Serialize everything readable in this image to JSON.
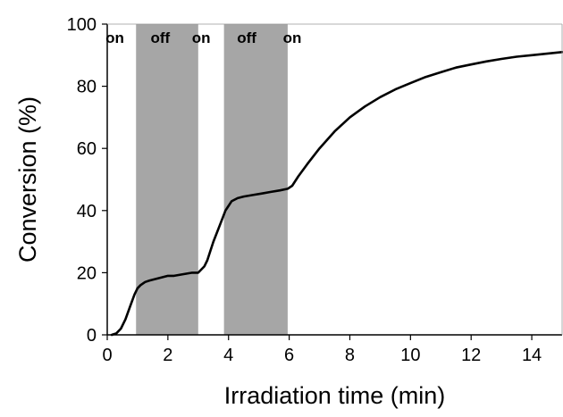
{
  "chart_data": {
    "type": "line",
    "title": "",
    "xlabel": "Irradiation time (min)",
    "ylabel": "Conversion (%)",
    "xlim": [
      0,
      15
    ],
    "ylim": [
      0,
      100
    ],
    "xticks": [
      "0",
      "2",
      "4",
      "6",
      "8",
      "10",
      "12",
      "14"
    ],
    "yticks": [
      "0",
      "20",
      "40",
      "60",
      "80",
      "100"
    ],
    "grid": false,
    "legend": "none",
    "shaded_regions": [
      {
        "x_start": 0.95,
        "x_end": 3.0,
        "color": "#a6a6a6"
      },
      {
        "x_start": 3.85,
        "x_end": 5.95,
        "color": "#a6a6a6"
      }
    ],
    "annotations": [
      {
        "text": "on",
        "x": 0.25,
        "y": 94
      },
      {
        "text": "off",
        "x": 1.75,
        "y": 94
      },
      {
        "text": "on",
        "x": 3.1,
        "y": 94
      },
      {
        "text": "off",
        "x": 4.6,
        "y": 94
      },
      {
        "text": "on",
        "x": 6.1,
        "y": 94
      }
    ],
    "series": [
      {
        "color": "#000000",
        "x": [
          0.15,
          0.3,
          0.45,
          0.6,
          0.75,
          0.9,
          1.0,
          1.1,
          1.25,
          1.4,
          1.6,
          1.8,
          2.0,
          2.2,
          2.5,
          2.8,
          3.0,
          3.1,
          3.2,
          3.3,
          3.4,
          3.5,
          3.7,
          3.9,
          4.1,
          4.3,
          4.5,
          4.8,
          5.1,
          5.4,
          5.7,
          5.95,
          6.1,
          6.3,
          6.6,
          7.0,
          7.5,
          8.0,
          8.5,
          9.0,
          9.5,
          10.0,
          10.5,
          11.0,
          11.5,
          12.0,
          12.5,
          13.0,
          13.5,
          14.0,
          14.5,
          15.0
        ],
        "values": [
          0,
          0.5,
          2,
          5,
          9,
          13,
          15,
          16,
          17,
          17.5,
          18,
          18.5,
          19,
          19,
          19.5,
          20,
          20,
          21,
          22,
          24,
          27,
          30,
          35,
          40,
          43,
          44,
          44.5,
          45,
          45.5,
          46,
          46.5,
          47,
          48,
          51,
          55,
          60,
          65.5,
          70,
          73.5,
          76.5,
          79,
          81,
          83,
          84.5,
          86,
          87,
          88,
          88.8,
          89.5,
          90,
          90.5,
          91
        ]
      }
    ]
  }
}
